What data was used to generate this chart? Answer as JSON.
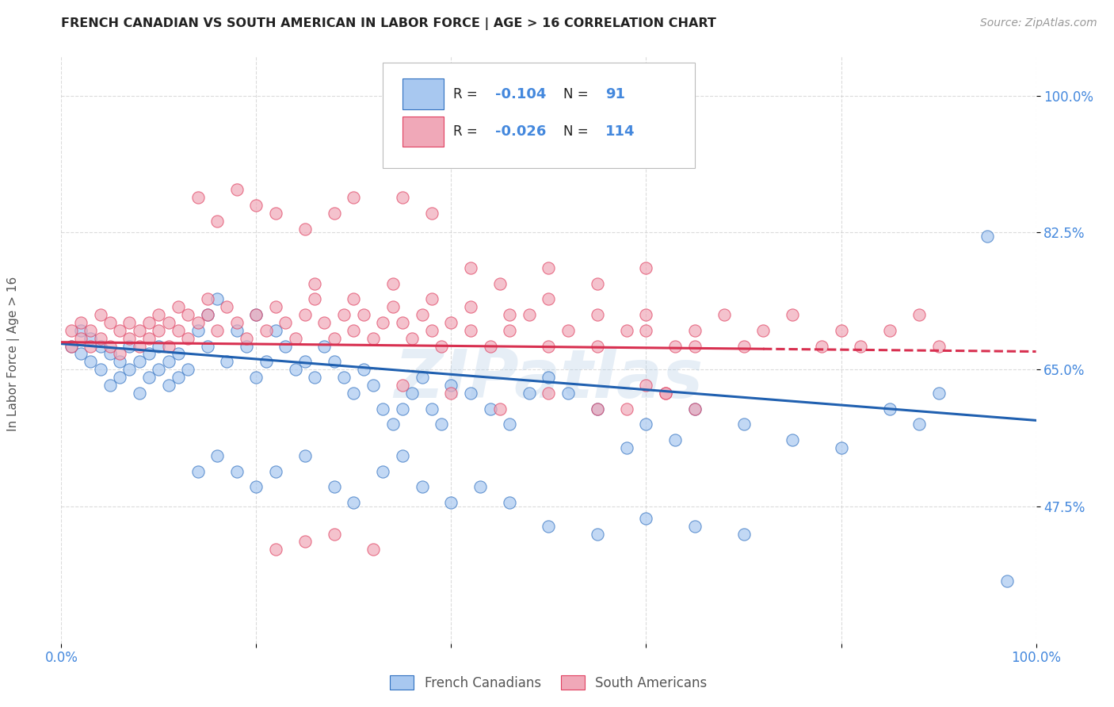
{
  "title": "FRENCH CANADIAN VS SOUTH AMERICAN IN LABOR FORCE | AGE > 16 CORRELATION CHART",
  "source": "Source: ZipAtlas.com",
  "ylabel": "In Labor Force | Age > 16",
  "legend_labels": [
    "French Canadians",
    "South Americans"
  ],
  "blue_R": -0.104,
  "blue_N": 91,
  "pink_R": -0.026,
  "pink_N": 114,
  "blue_fill": "#A8C8F0",
  "pink_fill": "#F0A8B8",
  "blue_edge": "#3070C0",
  "pink_edge": "#E04060",
  "blue_line_color": "#2060B0",
  "pink_line_color": "#D83050",
  "blue_line_intercept": 0.683,
  "blue_line_slope": -0.098,
  "pink_line_intercept": 0.685,
  "pink_line_slope": -0.012,
  "xmin": 0.0,
  "xmax": 1.0,
  "ymin": 0.3,
  "ymax": 1.05,
  "ytick_vals": [
    0.475,
    0.65,
    0.825,
    1.0
  ],
  "ytick_labels": [
    "47.5%",
    "65.0%",
    "82.5%",
    "100.0%"
  ],
  "xtick_vals": [
    0.0,
    0.2,
    0.4,
    0.6,
    0.8,
    1.0
  ],
  "xtick_labels": [
    "0.0%",
    "",
    "",
    "",
    "",
    "100.0%"
  ],
  "background_color": "#FFFFFF",
  "grid_color": "#CCCCCC",
  "title_color": "#222222",
  "axis_label_color": "#4488DD",
  "watermark": "ZIPatlas",
  "blue_scatter_x": [
    0.01,
    0.02,
    0.02,
    0.03,
    0.03,
    0.04,
    0.04,
    0.05,
    0.05,
    0.06,
    0.06,
    0.07,
    0.07,
    0.08,
    0.08,
    0.09,
    0.09,
    0.1,
    0.1,
    0.11,
    0.11,
    0.12,
    0.12,
    0.13,
    0.14,
    0.15,
    0.15,
    0.16,
    0.17,
    0.18,
    0.19,
    0.2,
    0.2,
    0.21,
    0.22,
    0.23,
    0.24,
    0.25,
    0.26,
    0.27,
    0.28,
    0.29,
    0.3,
    0.31,
    0.32,
    0.33,
    0.34,
    0.35,
    0.36,
    0.37,
    0.38,
    0.39,
    0.4,
    0.42,
    0.44,
    0.46,
    0.48,
    0.5,
    0.52,
    0.55,
    0.58,
    0.6,
    0.63,
    0.65,
    0.7,
    0.75,
    0.8,
    0.85,
    0.88,
    0.9,
    0.14,
    0.16,
    0.18,
    0.2,
    0.22,
    0.25,
    0.28,
    0.3,
    0.33,
    0.35,
    0.37,
    0.4,
    0.43,
    0.46,
    0.5,
    0.55,
    0.6,
    0.65,
    0.7,
    0.95,
    0.97
  ],
  "blue_scatter_y": [
    0.68,
    0.67,
    0.7,
    0.66,
    0.69,
    0.65,
    0.68,
    0.67,
    0.63,
    0.66,
    0.64,
    0.65,
    0.68,
    0.62,
    0.66,
    0.64,
    0.67,
    0.65,
    0.68,
    0.63,
    0.66,
    0.64,
    0.67,
    0.65,
    0.7,
    0.72,
    0.68,
    0.74,
    0.66,
    0.7,
    0.68,
    0.72,
    0.64,
    0.66,
    0.7,
    0.68,
    0.65,
    0.66,
    0.64,
    0.68,
    0.66,
    0.64,
    0.62,
    0.65,
    0.63,
    0.6,
    0.58,
    0.6,
    0.62,
    0.64,
    0.6,
    0.58,
    0.63,
    0.62,
    0.6,
    0.58,
    0.62,
    0.64,
    0.62,
    0.6,
    0.55,
    0.58,
    0.56,
    0.6,
    0.58,
    0.56,
    0.55,
    0.6,
    0.58,
    0.62,
    0.52,
    0.54,
    0.52,
    0.5,
    0.52,
    0.54,
    0.5,
    0.48,
    0.52,
    0.54,
    0.5,
    0.48,
    0.5,
    0.48,
    0.45,
    0.44,
    0.46,
    0.45,
    0.44,
    0.82,
    0.38
  ],
  "pink_scatter_x": [
    0.01,
    0.01,
    0.02,
    0.02,
    0.03,
    0.03,
    0.04,
    0.04,
    0.05,
    0.05,
    0.06,
    0.06,
    0.07,
    0.07,
    0.08,
    0.08,
    0.09,
    0.09,
    0.1,
    0.1,
    0.11,
    0.11,
    0.12,
    0.12,
    0.13,
    0.13,
    0.14,
    0.15,
    0.15,
    0.16,
    0.17,
    0.18,
    0.19,
    0.2,
    0.21,
    0.22,
    0.23,
    0.24,
    0.25,
    0.26,
    0.27,
    0.28,
    0.29,
    0.3,
    0.31,
    0.32,
    0.33,
    0.34,
    0.35,
    0.36,
    0.37,
    0.38,
    0.39,
    0.4,
    0.42,
    0.44,
    0.46,
    0.48,
    0.5,
    0.52,
    0.55,
    0.58,
    0.6,
    0.63,
    0.65,
    0.68,
    0.7,
    0.72,
    0.75,
    0.78,
    0.8,
    0.82,
    0.85,
    0.88,
    0.9,
    0.14,
    0.16,
    0.18,
    0.2,
    0.22,
    0.25,
    0.28,
    0.3,
    0.35,
    0.38,
    0.42,
    0.45,
    0.5,
    0.55,
    0.6,
    0.26,
    0.3,
    0.34,
    0.38,
    0.42,
    0.46,
    0.5,
    0.55,
    0.6,
    0.65,
    0.58,
    0.62,
    0.6,
    0.65,
    0.62,
    0.55,
    0.5,
    0.45,
    0.4,
    0.35,
    0.32,
    0.28,
    0.25,
    0.22
  ],
  "pink_scatter_y": [
    0.7,
    0.68,
    0.71,
    0.69,
    0.7,
    0.68,
    0.72,
    0.69,
    0.71,
    0.68,
    0.7,
    0.67,
    0.69,
    0.71,
    0.7,
    0.68,
    0.71,
    0.69,
    0.7,
    0.72,
    0.68,
    0.71,
    0.73,
    0.7,
    0.72,
    0.69,
    0.71,
    0.74,
    0.72,
    0.7,
    0.73,
    0.71,
    0.69,
    0.72,
    0.7,
    0.73,
    0.71,
    0.69,
    0.72,
    0.74,
    0.71,
    0.69,
    0.72,
    0.7,
    0.72,
    0.69,
    0.71,
    0.73,
    0.71,
    0.69,
    0.72,
    0.7,
    0.68,
    0.71,
    0.7,
    0.68,
    0.7,
    0.72,
    0.68,
    0.7,
    0.68,
    0.7,
    0.72,
    0.68,
    0.7,
    0.72,
    0.68,
    0.7,
    0.72,
    0.68,
    0.7,
    0.68,
    0.7,
    0.72,
    0.68,
    0.87,
    0.84,
    0.88,
    0.86,
    0.85,
    0.83,
    0.85,
    0.87,
    0.87,
    0.85,
    0.78,
    0.76,
    0.78,
    0.76,
    0.78,
    0.76,
    0.74,
    0.76,
    0.74,
    0.73,
    0.72,
    0.74,
    0.72,
    0.7,
    0.68,
    0.6,
    0.62,
    0.63,
    0.6,
    0.62,
    0.6,
    0.62,
    0.6,
    0.62,
    0.63,
    0.42,
    0.44,
    0.43,
    0.42
  ]
}
